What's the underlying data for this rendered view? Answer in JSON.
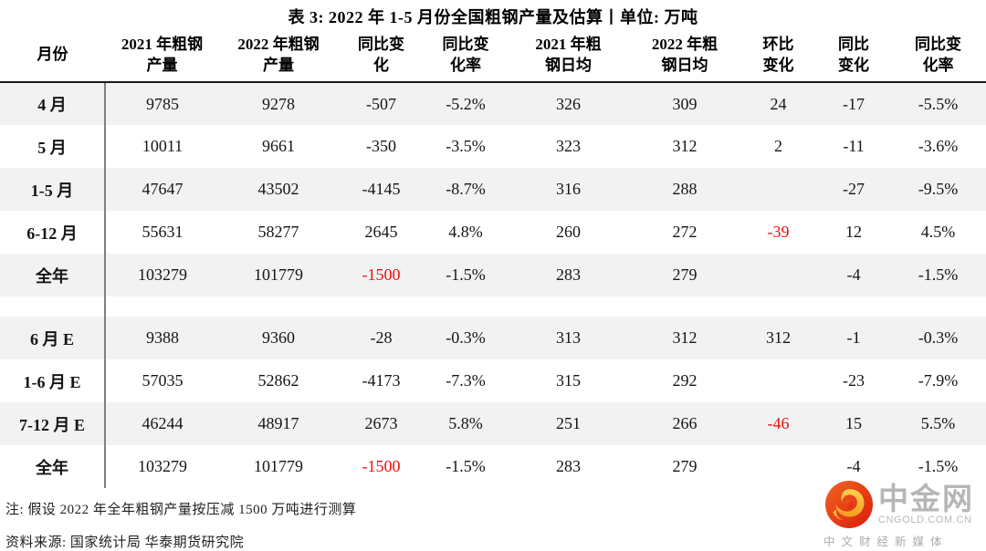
{
  "title": "表 3: 2022 年 1-5 月份全国粗钢产量及估算丨单位: 万吨",
  "table": {
    "headers": [
      "月份",
      "2021 年粗钢\n产量",
      "2022 年粗钢\n产量",
      "同比变\n化",
      "同比变\n化率",
      "2021 年粗\n钢日均",
      "2022 年粗\n钢日均",
      "环比\n变化",
      "同比\n变化",
      "同比变\n化率"
    ],
    "groups": [
      {
        "name": "actual",
        "rows": [
          {
            "cells": [
              "4 月",
              "9785",
              "9278",
              "-507",
              "-5.2%",
              "326",
              "309",
              "24",
              "-17",
              "-5.5%"
            ],
            "red": []
          },
          {
            "cells": [
              "5 月",
              "10011",
              "9661",
              "-350",
              "-3.5%",
              "323",
              "312",
              "2",
              "-11",
              "-3.6%"
            ],
            "red": []
          },
          {
            "cells": [
              "1-5 月",
              "47647",
              "43502",
              "-4145",
              "-8.7%",
              "316",
              "288",
              "",
              "-27",
              "-9.5%"
            ],
            "red": []
          },
          {
            "cells": [
              "6-12 月",
              "55631",
              "58277",
              "2645",
              "4.8%",
              "260",
              "272",
              "-39",
              "12",
              "4.5%"
            ],
            "red": [
              7
            ]
          },
          {
            "cells": [
              "全年",
              "103279",
              "101779",
              "-1500",
              "-1.5%",
              "283",
              "279",
              "",
              "-4",
              "-1.5%"
            ],
            "red": [
              3
            ]
          }
        ]
      },
      {
        "name": "estimate",
        "rows": [
          {
            "cells": [
              "6 月 E",
              "9388",
              "9360",
              "-28",
              "-0.3%",
              "313",
              "312",
              "312",
              "-1",
              "-0.3%"
            ],
            "red": []
          },
          {
            "cells": [
              "1-6 月 E",
              "57035",
              "52862",
              "-4173",
              "-7.3%",
              "315",
              "292",
              "",
              "-23",
              "-7.9%"
            ],
            "red": []
          },
          {
            "cells": [
              "7-12 月 E",
              "46244",
              "48917",
              "2673",
              "5.8%",
              "251",
              "266",
              "-46",
              "15",
              "5.5%"
            ],
            "red": [
              7
            ]
          },
          {
            "cells": [
              "全年",
              "103279",
              "101779",
              "-1500",
              "-1.5%",
              "283",
              "279",
              "",
              "-4",
              "-1.5%"
            ],
            "red": [
              3
            ]
          }
        ]
      }
    ]
  },
  "notes": {
    "assumption": "注: 假设 2022 年全年粗钢产量按压减 1500 万吨进行测算",
    "source": "资料来源: 国家统计局 华泰期货研究院"
  },
  "logo": {
    "name": "中金网",
    "domain": "CNGOLD.COM.CN",
    "tagline": "中文财经新媒体",
    "icon": "cngold-swirl-icon"
  },
  "colors": {
    "negative_red": "#f20d0d",
    "row_stripe": "#f2f2f2",
    "header_rule": "#1a1a1a",
    "divider_gray": "#808080",
    "logo_red": "#e02711",
    "logo_orange": "#f26522",
    "logo_gold": "#f9b233",
    "logo_gray": "#b6b6b6"
  }
}
